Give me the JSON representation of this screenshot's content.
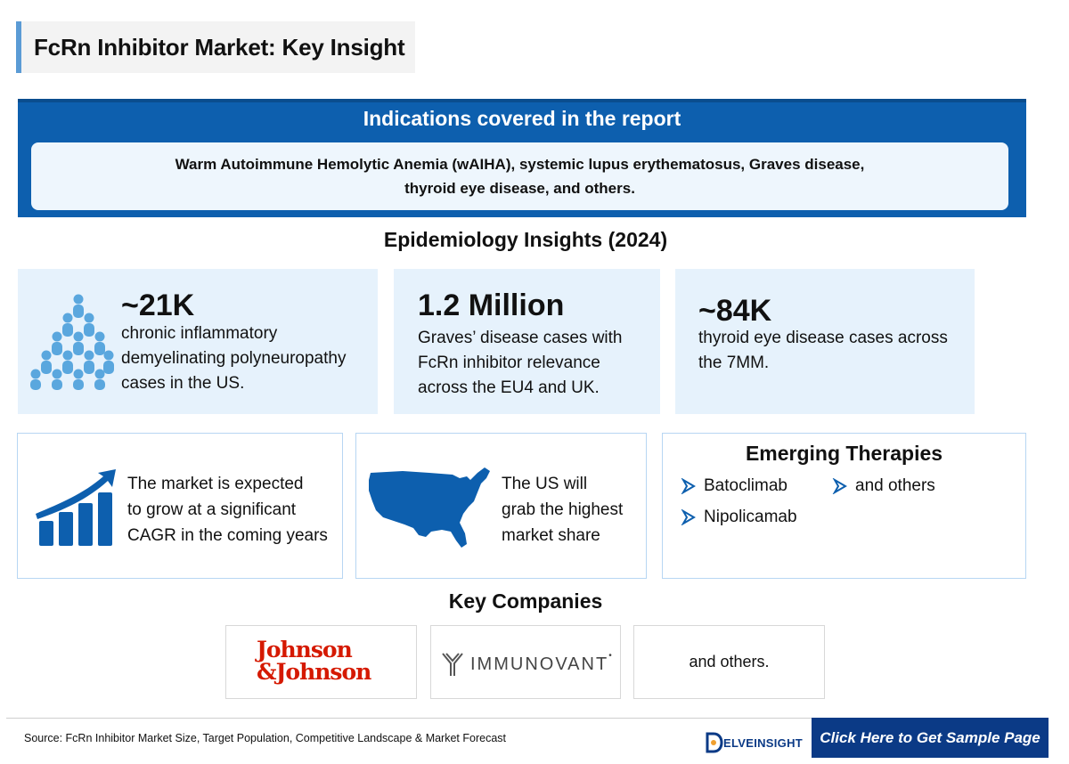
{
  "title": "FcRn Inhibitor Market: Key Insight",
  "indications": {
    "heading": "Indications covered in the report",
    "line1": "Warm Autoimmune Hemolytic Anemia (wAIHA), systemic lupus erythematosus, Graves disease,",
    "line2": "thyroid eye disease, and others."
  },
  "epidemiology": {
    "heading": "Epidemiology Insights (2024)",
    "cards": [
      {
        "value": "~21K",
        "lines": [
          "chronic inflammatory",
          "demyelinating polyneuropathy",
          "cases in the US."
        ]
      },
      {
        "value": "1.2 Million",
        "lines": [
          "Graves’ disease cases with",
          "FcRn inhibitor relevance",
          "across the EU4 and UK."
        ]
      },
      {
        "value": "~84K",
        "lines": [
          "thyroid eye disease cases across",
          "the 7MM."
        ]
      }
    ]
  },
  "market": {
    "growth_lines": [
      "The market is expected",
      "to grow at a significant",
      "CAGR in the coming years"
    ],
    "us_lines": [
      "The US will",
      "grab the highest",
      "market share"
    ]
  },
  "therapies": {
    "heading": "Emerging Therapies",
    "items": [
      "Batoclimab",
      "Nipolicamab",
      "and others"
    ]
  },
  "companies": {
    "heading": "Key Companies",
    "jj_line1": "Johnson",
    "jj_line2": "&Johnson",
    "immunovant": "IMMUNOVANT",
    "others": "and others."
  },
  "footer": {
    "source": "Source: FcRn Inhibitor Market Size, Target Population, Competitive Landscape & Market Forecast",
    "brand": "ELVEINSIGHT",
    "cta": "Click Here to Get Sample Page"
  },
  "colors": {
    "primary_blue": "#0d5fae",
    "dark_navy": "#0b3a86",
    "light_blue": "#e6f2fc",
    "jj_red": "#d51900"
  }
}
